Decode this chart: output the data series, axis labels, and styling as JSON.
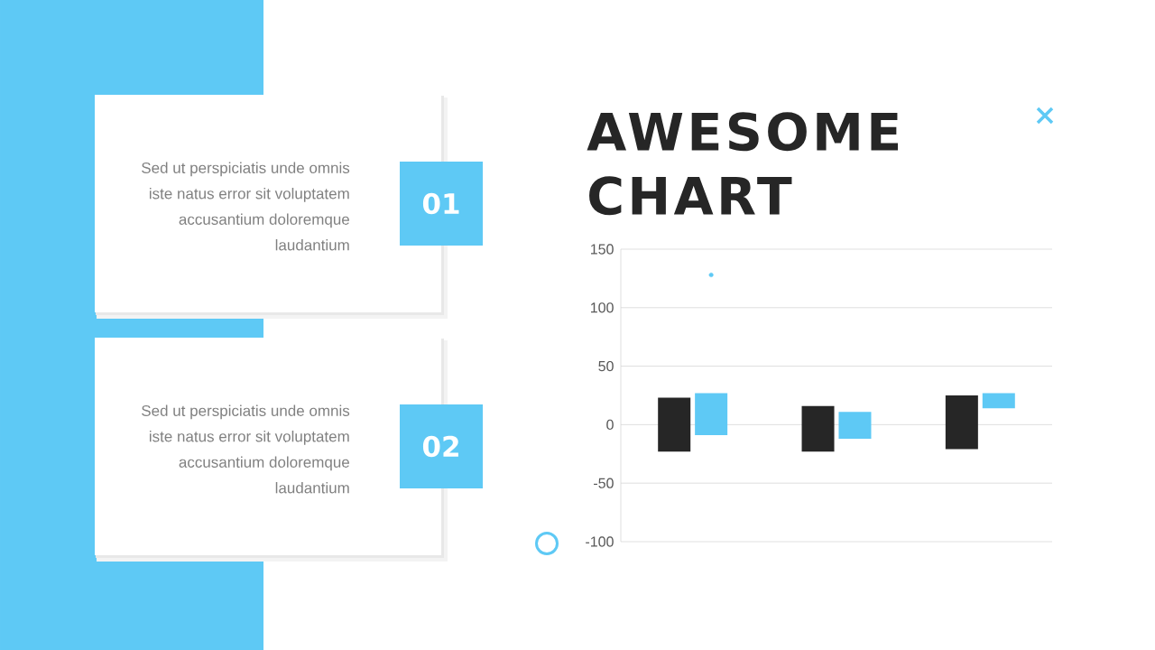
{
  "chart_data": {
    "type": "bar",
    "title": "AWESOME CHART",
    "categories": [
      null,
      null,
      null
    ],
    "series": [
      {
        "color": "#262626",
        "values": [
          46,
          39,
          46
        ],
        "base": [
          -23,
          -23,
          -21
        ]
      },
      {
        "color": "#5EC9F5",
        "values": [
          36,
          23,
          13
        ],
        "base": [
          -9,
          -12,
          14
        ]
      },
      {
        "type": "scatter",
        "color": "#5EC9F5",
        "values": [
          128,
          null,
          null
        ],
        "marker": "circle"
      }
    ],
    "ylim": [
      -100,
      150
    ],
    "yticks": [
      -100,
      -50,
      0,
      50,
      100,
      150
    ],
    "grid": "y",
    "annotations": [
      "Sed ut perspiciatis unde omnis iste natus error sit voluptatem accusantium doloremque laudantium",
      "01",
      "Sed ut perspiciatis unde omnis iste natus error sit voluptatem accusantium doloremque laudantium",
      "02"
    ]
  }
}
